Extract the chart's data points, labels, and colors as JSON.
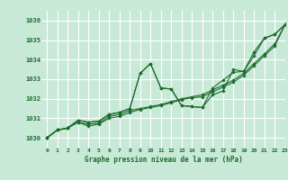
{
  "xlabel": "Graphe pression niveau de la mer (hPa)",
  "background_color": "#c8e8d8",
  "grid_color": "#ffffff",
  "line_color": "#1a6b2a",
  "marker_color": "#1a6b2a",
  "ylim": [
    1029.5,
    1036.5
  ],
  "xlim": [
    -0.5,
    23
  ],
  "yticks": [
    1030,
    1031,
    1032,
    1033,
    1034,
    1035,
    1036
  ],
  "xticks": [
    0,
    1,
    2,
    3,
    4,
    5,
    6,
    7,
    8,
    9,
    10,
    11,
    12,
    13,
    14,
    15,
    16,
    17,
    18,
    19,
    20,
    21,
    22,
    23
  ],
  "series": [
    [
      1030.0,
      1030.4,
      1030.5,
      1030.9,
      1030.8,
      1030.85,
      1031.2,
      1031.3,
      1031.5,
      1033.3,
      1033.8,
      1032.55,
      1032.5,
      1031.65,
      1031.6,
      1031.55,
      1032.2,
      1032.4,
      1033.5,
      1033.4,
      1034.2,
      1035.1,
      1035.3,
      1035.8
    ],
    [
      1030.0,
      1030.4,
      1030.5,
      1030.9,
      1030.8,
      1030.85,
      1031.2,
      1031.3,
      1031.5,
      1033.3,
      1033.8,
      1032.55,
      1032.5,
      1031.65,
      1031.6,
      1031.55,
      1032.55,
      1032.95,
      1033.35,
      1033.4,
      1034.4,
      1035.1,
      1035.3,
      1035.8
    ],
    [
      1030.0,
      1030.4,
      1030.5,
      1030.8,
      1030.7,
      1030.75,
      1031.1,
      1031.2,
      1031.4,
      1031.5,
      1031.6,
      1031.7,
      1031.85,
      1032.0,
      1032.1,
      1032.2,
      1032.45,
      1032.7,
      1032.95,
      1033.3,
      1033.8,
      1034.3,
      1034.8,
      1035.8
    ],
    [
      1030.0,
      1030.4,
      1030.5,
      1030.8,
      1030.6,
      1030.7,
      1031.0,
      1031.1,
      1031.3,
      1031.45,
      1031.55,
      1031.65,
      1031.8,
      1031.95,
      1032.05,
      1032.1,
      1032.35,
      1032.6,
      1032.85,
      1033.2,
      1033.7,
      1034.2,
      1034.7,
      1035.8
    ]
  ]
}
